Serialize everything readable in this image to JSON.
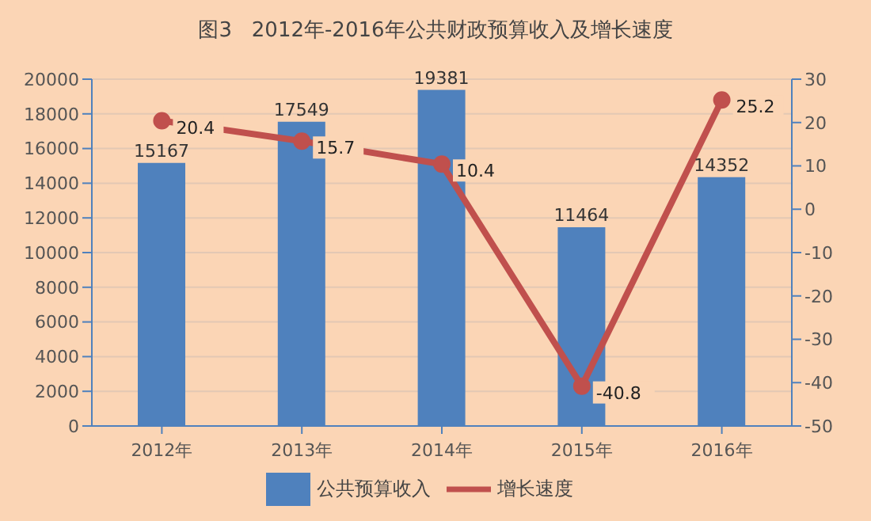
{
  "chart_data": {
    "type": "bar",
    "title": "图3   2012年-2016年公共财政预算收入及增长速度",
    "categories": [
      "2012年",
      "2013年",
      "2014年",
      "2015年",
      "2016年"
    ],
    "series": [
      {
        "name": "公共预算收入",
        "color": "#4f81bd",
        "values": [
          15167,
          17549,
          19381,
          11464,
          14352
        ]
      },
      {
        "name": "增长速度",
        "type": "line",
        "axis": "y2",
        "color": "#c0504d",
        "values": [
          20.4,
          15.7,
          10.4,
          -40.8,
          25.2
        ]
      }
    ],
    "ylim": [
      0,
      20000
    ],
    "yticks": [
      0,
      2000,
      4000,
      6000,
      8000,
      10000,
      12000,
      14000,
      16000,
      18000,
      20000
    ],
    "y2lim": [
      -50,
      30
    ],
    "y2ticks": [
      -50,
      -40,
      -30,
      -20,
      -10,
      0,
      10,
      20,
      30
    ],
    "grid": "y",
    "legend": "bottom",
    "marker": "circle",
    "data_labels": true
  }
}
